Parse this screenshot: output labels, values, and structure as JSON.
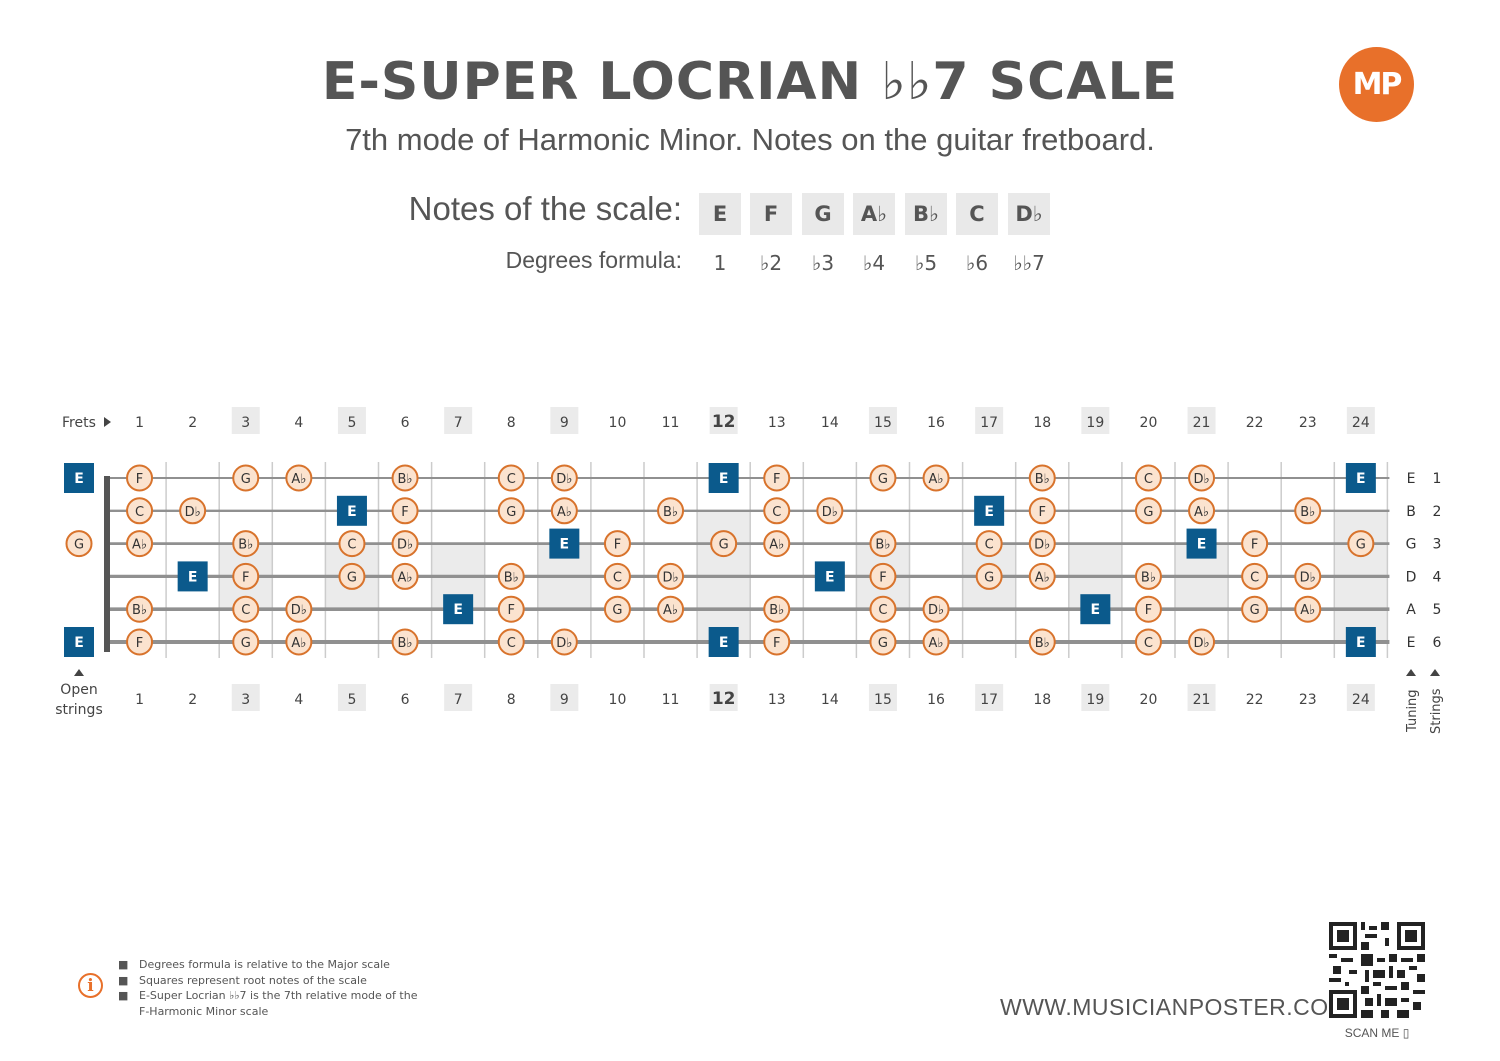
{
  "header": {
    "title": "E-SUPER LOCRIAN ♭♭7 SCALE",
    "subtitle": "7th mode of Harmonic Minor. Notes on the guitar fretboard.",
    "logo_text": "MP"
  },
  "scale": {
    "notes_label": "Notes of the scale:",
    "degrees_label": "Degrees formula:",
    "notes": [
      "E",
      "F",
      "G",
      "A♭",
      "B♭",
      "C",
      "D♭"
    ],
    "degrees": [
      "1",
      "♭2",
      "♭3",
      "♭4",
      "♭5",
      "♭6",
      "♭♭7"
    ]
  },
  "fretboard": {
    "frets_label": "Frets",
    "open_label": [
      "Open",
      "strings"
    ],
    "tuning_label": "Tuning",
    "strings_label": "Strings",
    "fret_numbers": [
      "1",
      "2",
      "3",
      "4",
      "5",
      "6",
      "7",
      "8",
      "9",
      "10",
      "11",
      "12",
      "13",
      "14",
      "15",
      "16",
      "17",
      "18",
      "19",
      "20",
      "21",
      "22",
      "23",
      "24"
    ],
    "highlighted_frets": [
      3,
      5,
      7,
      9,
      12,
      15,
      17,
      19,
      21,
      24
    ],
    "root_note": "E",
    "strings": [
      {
        "number": "1",
        "tuning": "E",
        "open_note": "E",
        "notes": [
          [
            1,
            "F"
          ],
          [
            3,
            "G"
          ],
          [
            4,
            "Ab"
          ],
          [
            6,
            "Bb"
          ],
          [
            8,
            "C"
          ],
          [
            9,
            "Db"
          ],
          [
            12,
            "E"
          ],
          [
            13,
            "F"
          ],
          [
            15,
            "G"
          ],
          [
            16,
            "Ab"
          ],
          [
            18,
            "Bb"
          ],
          [
            20,
            "C"
          ],
          [
            21,
            "Db"
          ],
          [
            24,
            "E"
          ]
        ]
      },
      {
        "number": "2",
        "tuning": "B",
        "open_note": "",
        "notes": [
          [
            1,
            "C"
          ],
          [
            2,
            "Db"
          ],
          [
            5,
            "E"
          ],
          [
            6,
            "F"
          ],
          [
            8,
            "G"
          ],
          [
            9,
            "Ab"
          ],
          [
            11,
            "Bb"
          ],
          [
            13,
            "C"
          ],
          [
            14,
            "Db"
          ],
          [
            17,
            "E"
          ],
          [
            18,
            "F"
          ],
          [
            20,
            "G"
          ],
          [
            21,
            "Ab"
          ],
          [
            23,
            "Bb"
          ]
        ]
      },
      {
        "number": "3",
        "tuning": "G",
        "open_note": "G",
        "notes": [
          [
            1,
            "Ab"
          ],
          [
            3,
            "Bb"
          ],
          [
            5,
            "C"
          ],
          [
            6,
            "Db"
          ],
          [
            9,
            "E"
          ],
          [
            10,
            "F"
          ],
          [
            12,
            "G"
          ],
          [
            13,
            "Ab"
          ],
          [
            15,
            "Bb"
          ],
          [
            17,
            "C"
          ],
          [
            18,
            "Db"
          ],
          [
            21,
            "E"
          ],
          [
            22,
            "F"
          ],
          [
            24,
            "G"
          ]
        ]
      },
      {
        "number": "4",
        "tuning": "D",
        "open_note": "",
        "notes": [
          [
            2,
            "E"
          ],
          [
            3,
            "F"
          ],
          [
            5,
            "G"
          ],
          [
            6,
            "Ab"
          ],
          [
            8,
            "Bb"
          ],
          [
            10,
            "C"
          ],
          [
            11,
            "Db"
          ],
          [
            14,
            "E"
          ],
          [
            15,
            "F"
          ],
          [
            17,
            "G"
          ],
          [
            18,
            "Ab"
          ],
          [
            20,
            "Bb"
          ],
          [
            22,
            "C"
          ],
          [
            23,
            "Db"
          ]
        ]
      },
      {
        "number": "5",
        "tuning": "A",
        "open_note": "",
        "notes": [
          [
            1,
            "Bb"
          ],
          [
            3,
            "C"
          ],
          [
            4,
            "Db"
          ],
          [
            7,
            "E"
          ],
          [
            8,
            "F"
          ],
          [
            10,
            "G"
          ],
          [
            11,
            "Ab"
          ],
          [
            13,
            "Bb"
          ],
          [
            15,
            "C"
          ],
          [
            16,
            "Db"
          ],
          [
            19,
            "E"
          ],
          [
            20,
            "F"
          ],
          [
            22,
            "G"
          ],
          [
            23,
            "Ab"
          ]
        ]
      },
      {
        "number": "6",
        "tuning": "E",
        "open_note": "E",
        "notes": [
          [
            1,
            "F"
          ],
          [
            3,
            "G"
          ],
          [
            4,
            "Ab"
          ],
          [
            6,
            "Bb"
          ],
          [
            8,
            "C"
          ],
          [
            9,
            "Db"
          ],
          [
            12,
            "E"
          ],
          [
            13,
            "F"
          ],
          [
            15,
            "G"
          ],
          [
            16,
            "Ab"
          ],
          [
            18,
            "Bb"
          ],
          [
            20,
            "C"
          ],
          [
            21,
            "Db"
          ],
          [
            24,
            "E"
          ]
        ]
      }
    ],
    "colors": {
      "root_fill": "#0b5a8c",
      "note_fill": "#fbe3cf",
      "note_stroke": "#d8732c",
      "shade": "#ebebeb",
      "string": "#909090",
      "fret": "#cccccc",
      "nut": "#555555"
    }
  },
  "footer": {
    "notes": [
      "Degrees formula is relative to the Major scale",
      "Squares represent root notes of the scale",
      "E-Super Locrian ♭♭7 is the 7th relative mode of the",
      "F-Harmonic Minor scale"
    ],
    "website": "WWW.MUSICIANPOSTER.COM",
    "scan_label": "SCAN ME ▯"
  }
}
